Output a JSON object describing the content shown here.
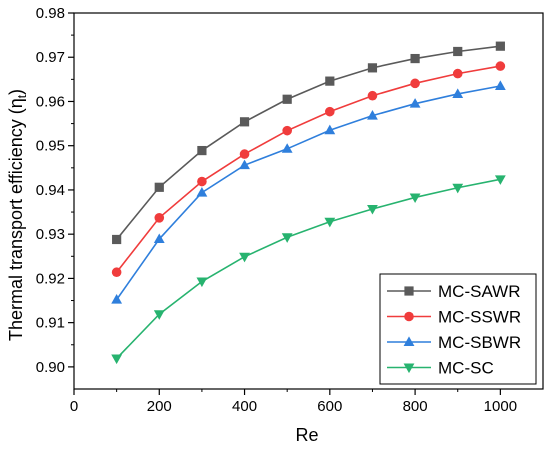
{
  "chart_data": {
    "type": "line",
    "xlabel": "Re",
    "ylabel": "Thermal transport efficiency (η",
    "ylabel_sub": "t",
    "ylabel_close": ")",
    "xlim": [
      0,
      1100
    ],
    "ylim": [
      0.895,
      0.98
    ],
    "x_ticks": [
      0,
      200,
      400,
      600,
      800,
      1000
    ],
    "x_tick_labels": [
      "0",
      "200",
      "400",
      "600",
      "800",
      "1000"
    ],
    "y_ticks": [
      0.9,
      0.91,
      0.92,
      0.93,
      0.94,
      0.95,
      0.96,
      0.97,
      0.98
    ],
    "y_tick_labels": [
      "0.90",
      "0.91",
      "0.92",
      "0.93",
      "0.94",
      "0.95",
      "0.96",
      "0.97",
      "0.98"
    ],
    "grid": false,
    "legend_position": "bottom-right",
    "x": [
      100,
      200,
      300,
      400,
      500,
      600,
      700,
      800,
      900,
      1000
    ],
    "series": [
      {
        "name": "MC-SAWR",
        "marker": "square",
        "color": "#5a5a5a",
        "values": [
          0.9288,
          0.9406,
          0.9489,
          0.9554,
          0.9605,
          0.9646,
          0.9676,
          0.9697,
          0.9713,
          0.9725
        ]
      },
      {
        "name": "MC-SSWR",
        "marker": "circle",
        "color": "#f03c3c",
        "values": [
          0.9214,
          0.9337,
          0.9419,
          0.9481,
          0.9534,
          0.9577,
          0.9613,
          0.9641,
          0.9663,
          0.968
        ]
      },
      {
        "name": "MC-SBWR",
        "marker": "triangle-up",
        "color": "#2f7fdc",
        "values": [
          0.9152,
          0.9289,
          0.9394,
          0.9456,
          0.9493,
          0.9535,
          0.9568,
          0.9595,
          0.9617,
          0.9635
        ]
      },
      {
        "name": "MC-SC",
        "marker": "triangle-down",
        "color": "#27b36f",
        "values": [
          0.9019,
          0.9119,
          0.9193,
          0.9249,
          0.9293,
          0.9328,
          0.9357,
          0.9383,
          0.9405,
          0.9424
        ]
      }
    ]
  }
}
